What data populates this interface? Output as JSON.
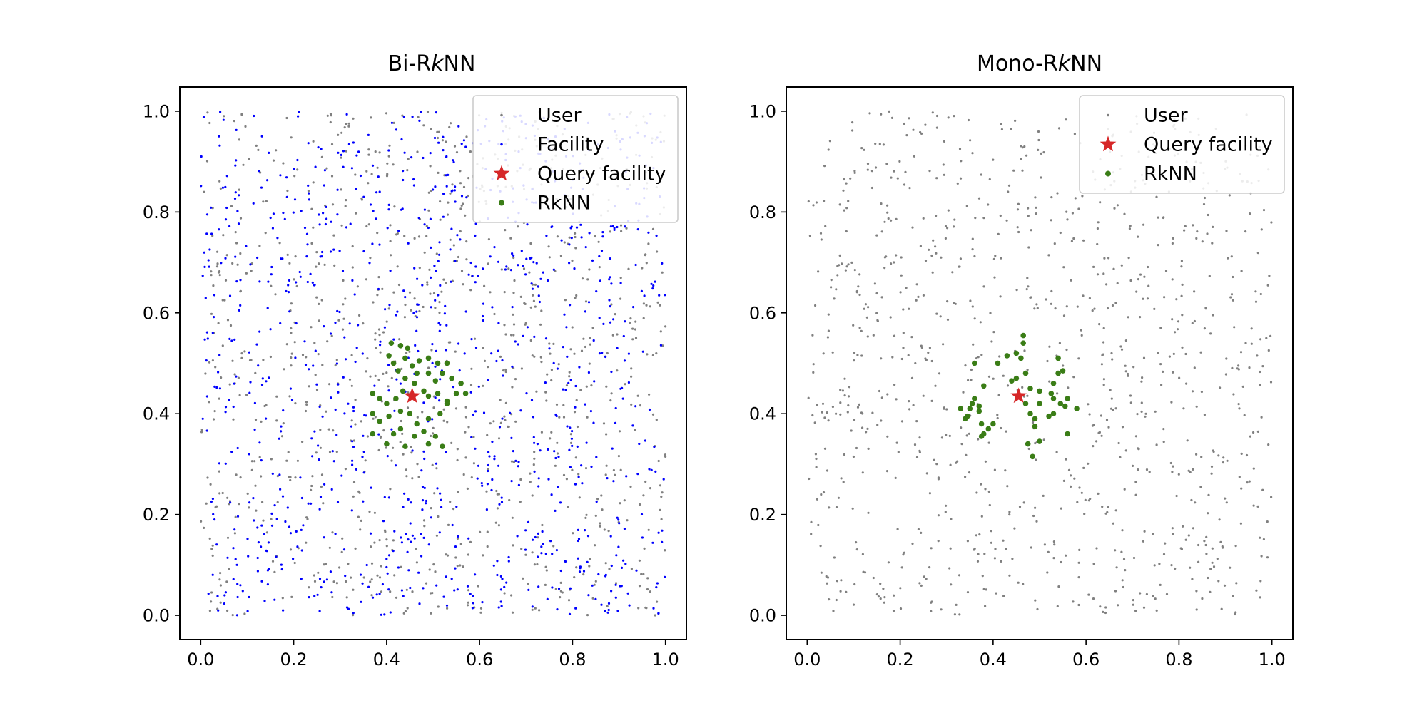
{
  "chart_data": [
    {
      "type": "scatter",
      "title_parts": [
        "Bi-R",
        "k",
        "NN"
      ],
      "xlim": [
        -0.045,
        1.045
      ],
      "ylim": [
        -0.048,
        1.048
      ],
      "xticks": [
        "0.0",
        "0.2",
        "0.4",
        "0.6",
        "0.8",
        "1.0"
      ],
      "yticks": [
        "0.0",
        "0.2",
        "0.4",
        "0.6",
        "0.8",
        "1.0"
      ],
      "grid": false,
      "legend_position": "top-right",
      "legend": [
        "User",
        "Facility",
        "Query facility",
        "RkNN"
      ],
      "series": [
        {
          "name": "User",
          "color": "#808080",
          "marker": "dot",
          "count": 1000,
          "distribution": "uniform [0,1]x[0,1]",
          "seed": 11
        },
        {
          "name": "Facility",
          "color": "#0000ff",
          "marker": "dot",
          "count": 1000,
          "distribution": "uniform [0,1]x[0,1]",
          "seed": 23
        },
        {
          "name": "Query facility",
          "color": "#d62728",
          "marker": "star",
          "points": [
            [
              0.455,
              0.435
            ]
          ]
        },
        {
          "name": "RkNN",
          "color": "#3a7d16",
          "marker": "circle",
          "points": [
            [
              0.41,
              0.54
            ],
            [
              0.43,
              0.535
            ],
            [
              0.405,
              0.515
            ],
            [
              0.415,
              0.5
            ],
            [
              0.44,
              0.51
            ],
            [
              0.455,
              0.495
            ],
            [
              0.47,
              0.505
            ],
            [
              0.49,
              0.51
            ],
            [
              0.51,
              0.5
            ],
            [
              0.53,
              0.5
            ],
            [
              0.425,
              0.485
            ],
            [
              0.44,
              0.47
            ],
            [
              0.465,
              0.48
            ],
            [
              0.49,
              0.48
            ],
            [
              0.505,
              0.465
            ],
            [
              0.52,
              0.48
            ],
            [
              0.54,
              0.47
            ],
            [
              0.56,
              0.46
            ],
            [
              0.57,
              0.44
            ],
            [
              0.55,
              0.44
            ],
            [
              0.53,
              0.425
            ],
            [
              0.51,
              0.44
            ],
            [
              0.49,
              0.435
            ],
            [
              0.48,
              0.445
            ],
            [
              0.46,
              0.46
            ],
            [
              0.435,
              0.445
            ],
            [
              0.42,
              0.43
            ],
            [
              0.4,
              0.42
            ],
            [
              0.37,
              0.44
            ],
            [
              0.385,
              0.43
            ],
            [
              0.37,
              0.4
            ],
            [
              0.385,
              0.385
            ],
            [
              0.405,
              0.395
            ],
            [
              0.43,
              0.405
            ],
            [
              0.45,
              0.4
            ],
            [
              0.465,
              0.38
            ],
            [
              0.49,
              0.39
            ],
            [
              0.515,
              0.4
            ],
            [
              0.48,
              0.365
            ],
            [
              0.46,
              0.355
            ],
            [
              0.43,
              0.37
            ],
            [
              0.415,
              0.36
            ],
            [
              0.37,
              0.36
            ],
            [
              0.4,
              0.34
            ],
            [
              0.44,
              0.335
            ],
            [
              0.49,
              0.34
            ],
            [
              0.505,
              0.355
            ],
            [
              0.52,
              0.335
            ],
            [
              0.53,
              0.42
            ],
            [
              0.445,
              0.53
            ]
          ]
        }
      ]
    },
    {
      "type": "scatter",
      "title_parts": [
        "Mono-R",
        "k",
        "NN"
      ],
      "xlim": [
        -0.045,
        1.045
      ],
      "ylim": [
        -0.048,
        1.048
      ],
      "xticks": [
        "0.0",
        "0.2",
        "0.4",
        "0.6",
        "0.8",
        "1.0"
      ],
      "yticks": [
        "0.0",
        "0.2",
        "0.4",
        "0.6",
        "0.8",
        "1.0"
      ],
      "grid": false,
      "legend_position": "top-right",
      "legend": [
        "User",
        "Query facility",
        "RkNN"
      ],
      "series": [
        {
          "name": "User",
          "color": "#808080",
          "marker": "dot",
          "count": 1000,
          "distribution": "uniform [0,1]x[0,1]",
          "seed": 37
        },
        {
          "name": "Query facility",
          "color": "#d62728",
          "marker": "star",
          "points": [
            [
              0.455,
              0.435
            ]
          ]
        },
        {
          "name": "RkNN",
          "color": "#3a7d16",
          "marker": "circle",
          "points": [
            [
              0.465,
              0.555
            ],
            [
              0.465,
              0.54
            ],
            [
              0.45,
              0.52
            ],
            [
              0.43,
              0.515
            ],
            [
              0.46,
              0.51
            ],
            [
              0.47,
              0.48
            ],
            [
              0.41,
              0.5
            ],
            [
              0.36,
              0.5
            ],
            [
              0.38,
              0.455
            ],
            [
              0.44,
              0.465
            ],
            [
              0.45,
              0.47
            ],
            [
              0.48,
              0.45
            ],
            [
              0.5,
              0.445
            ],
            [
              0.53,
              0.46
            ],
            [
              0.54,
              0.48
            ],
            [
              0.55,
              0.485
            ],
            [
              0.54,
              0.51
            ],
            [
              0.525,
              0.44
            ],
            [
              0.53,
              0.43
            ],
            [
              0.56,
              0.43
            ],
            [
              0.58,
              0.41
            ],
            [
              0.555,
              0.415
            ],
            [
              0.545,
              0.42
            ],
            [
              0.5,
              0.42
            ],
            [
              0.47,
              0.42
            ],
            [
              0.48,
              0.4
            ],
            [
              0.49,
              0.39
            ],
            [
              0.49,
              0.375
            ],
            [
              0.52,
              0.395
            ],
            [
              0.53,
              0.4
            ],
            [
              0.56,
              0.36
            ],
            [
              0.5,
              0.345
            ],
            [
              0.475,
              0.34
            ],
            [
              0.485,
              0.315
            ],
            [
              0.36,
              0.43
            ],
            [
              0.355,
              0.42
            ],
            [
              0.35,
              0.41
            ],
            [
              0.345,
              0.395
            ],
            [
              0.33,
              0.41
            ],
            [
              0.34,
              0.39
            ],
            [
              0.37,
              0.405
            ],
            [
              0.375,
              0.38
            ],
            [
              0.38,
              0.36
            ],
            [
              0.375,
              0.355
            ],
            [
              0.39,
              0.37
            ],
            [
              0.4,
              0.38
            ],
            [
              0.37,
              0.415
            ]
          ]
        }
      ]
    }
  ]
}
